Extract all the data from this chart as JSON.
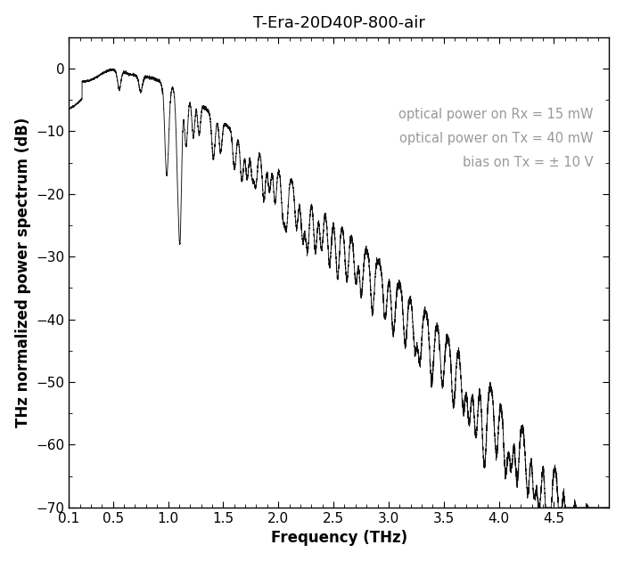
{
  "title": "T-Era-20D40P-800-air",
  "xlabel": "Frequency (THz)",
  "ylabel": "THz normalized power spectrum (dB)",
  "xlim": [
    0.1,
    5.0
  ],
  "ylim": [
    -70,
    5
  ],
  "xticks": [
    0.1,
    0.5,
    1.0,
    1.5,
    2.0,
    2.5,
    3.0,
    3.5,
    4.0,
    4.5
  ],
  "yticks": [
    0,
    -10,
    -20,
    -30,
    -40,
    -50,
    -60,
    -70
  ],
  "annotation_lines": [
    "optical power on Rx = 15 mW",
    "optical power on Tx = 40 mW",
    "bias on Tx = ± 10 V"
  ],
  "annotation_color": "#999999",
  "line_color": "#111111",
  "background_color": "#ffffff",
  "title_fontsize": 13,
  "label_fontsize": 12,
  "tick_fontsize": 11,
  "annotation_fontsize": 10.5
}
